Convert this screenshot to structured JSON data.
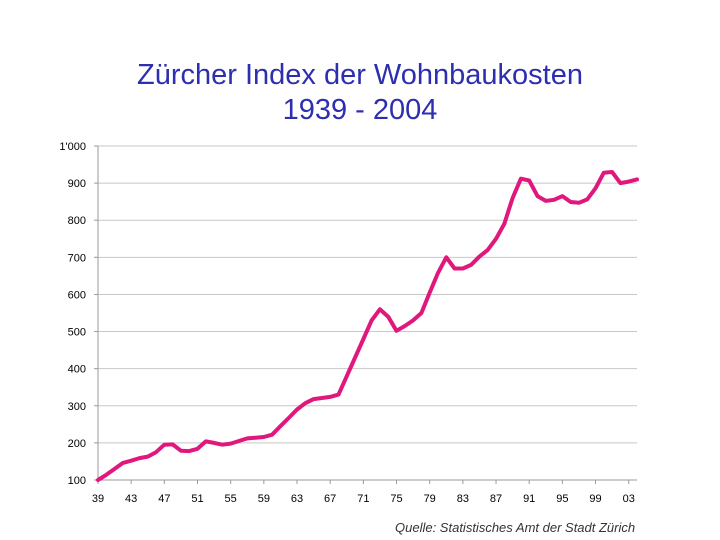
{
  "title_lines": [
    "Zürcher Index der Wohnbaukosten",
    "1939 - 2004"
  ],
  "source": "Quelle: Statistisches Amt der Stadt Zürich",
  "colors": {
    "line": "#e0177c",
    "title": "#2e2eb0",
    "grid": "#c8c8c8"
  },
  "chart_data": {
    "type": "line",
    "title": "Zürcher Index der Wohnbaukosten 1939 - 2004",
    "xlabel": "",
    "ylabel": "",
    "xlim": [
      1939,
      2004
    ],
    "ylim": [
      100,
      1000
    ],
    "grid": true,
    "ytick_labels": [
      "100",
      "200",
      "300",
      "400",
      "500",
      "600",
      "700",
      "800",
      "900",
      "1'000"
    ],
    "ytick_values": [
      100,
      200,
      300,
      400,
      500,
      600,
      700,
      800,
      900,
      1000
    ],
    "xtick_labels": [
      "39",
      "43",
      "47",
      "51",
      "55",
      "59",
      "63",
      "67",
      "71",
      "75",
      "79",
      "83",
      "87",
      "91",
      "95",
      "99",
      "03"
    ],
    "xtick_values": [
      1939,
      1943,
      1947,
      1951,
      1955,
      1959,
      1963,
      1967,
      1971,
      1975,
      1979,
      1983,
      1987,
      1991,
      1995,
      1999,
      2003
    ],
    "series": [
      {
        "x": [
          1939,
          1940,
          1941,
          1942,
          1943,
          1944,
          1945,
          1946,
          1947,
          1948,
          1949,
          1950,
          1951,
          1952,
          1953,
          1954,
          1955,
          1956,
          1957,
          1958,
          1959,
          1960,
          1961,
          1962,
          1963,
          1964,
          1965,
          1966,
          1967,
          1968,
          1969,
          1970,
          1971,
          1972,
          1973,
          1974,
          1975,
          1976,
          1977,
          1978,
          1979,
          1980,
          1981,
          1982,
          1983,
          1984,
          1985,
          1986,
          1987,
          1988,
          1989,
          1990,
          1991,
          1992,
          1993,
          1994,
          1995,
          1996,
          1997,
          1998,
          1999,
          2000,
          2001,
          2002,
          2003,
          2004
        ],
        "values": [
          100,
          114,
          130,
          146,
          152,
          159,
          163,
          175,
          195,
          196,
          179,
          178,
          184,
          204,
          200,
          195,
          198,
          205,
          212,
          214,
          216,
          222,
          245,
          267,
          290,
          307,
          318,
          321,
          324,
          330,
          380,
          430,
          480,
          530,
          560,
          540,
          502,
          515,
          530,
          550,
          605,
          658,
          700,
          670,
          670,
          680,
          702,
          720,
          750,
          790,
          860,
          912,
          907,
          865,
          852,
          855,
          865,
          849,
          847,
          856,
          886,
          928,
          930,
          900,
          904,
          910
        ]
      }
    ]
  }
}
